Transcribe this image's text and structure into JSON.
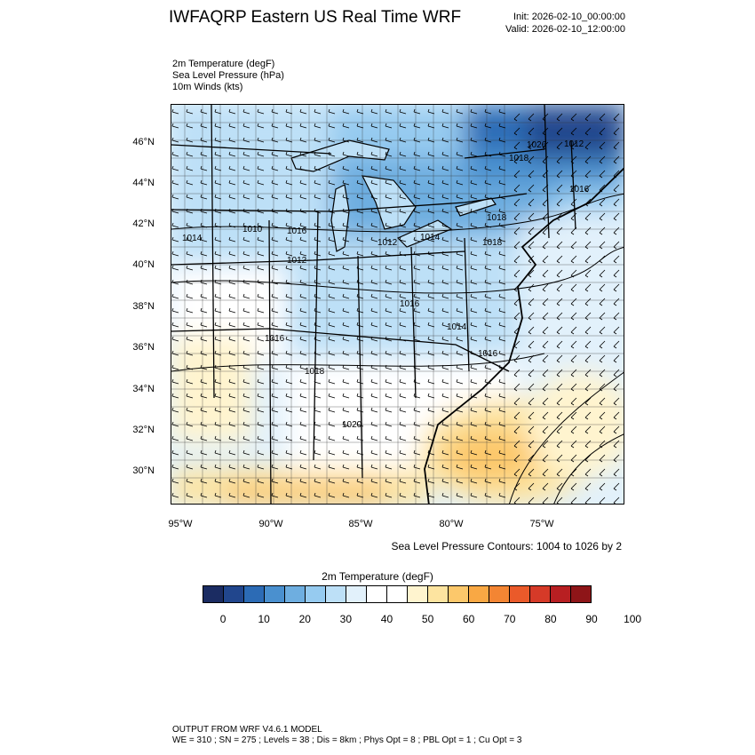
{
  "header": {
    "title": "IWFAQRP Eastern US Real Time WRF",
    "init": "Init: 2026-02-10_00:00:00",
    "valid": "Valid: 2026-02-10_12:00:00"
  },
  "fields": [
    "2m Temperature   (degF)",
    "Sea Level Pressure   (hPa)",
    "10m Winds   (kts)"
  ],
  "map": {
    "lat_labels": [
      "46°N",
      "44°N",
      "42°N",
      "40°N",
      "38°N",
      "36°N",
      "34°N",
      "32°N",
      "30°N"
    ],
    "lon_labels": [
      "95°W",
      "90°W",
      "85°W",
      "80°W",
      "75°W"
    ],
    "pressure_labels": [
      "1026",
      "1016",
      "1018",
      "1014",
      "1010",
      "1016",
      "1012",
      "1012",
      "1014",
      "1018",
      "1016",
      "1014",
      "1016",
      "1016",
      "1018",
      "1020",
      "1012",
      "1018"
    ],
    "slp_contour_note": "Sea Level Pressure Contours: 1004 to 1026 by 2"
  },
  "colorbar": {
    "title": "2m Temperature  (degF)",
    "colors": [
      "#1b2c62",
      "#21468d",
      "#2c6bb5",
      "#4a90cf",
      "#6eaee0",
      "#96cbf0",
      "#bde0f7",
      "#e2f1fb",
      "#ffffff",
      "#ffffff",
      "#fff4cf",
      "#fde4a0",
      "#fcc86b",
      "#f9a844",
      "#f38533",
      "#ea5a2a",
      "#d63a28",
      "#b81f22",
      "#8e1518"
    ],
    "labels": [
      "0",
      "10",
      "20",
      "30",
      "40",
      "50",
      "60",
      "70",
      "80",
      "90",
      "100"
    ]
  },
  "footer": {
    "line1": "OUTPUT FROM WRF V4.6.1 MODEL",
    "line2": "WE = 310 ; SN = 275 ; Levels = 38 ; Dis = 8km ; Phys Opt = 8 ; PBL Opt = 1 ; Cu Opt = 3"
  }
}
